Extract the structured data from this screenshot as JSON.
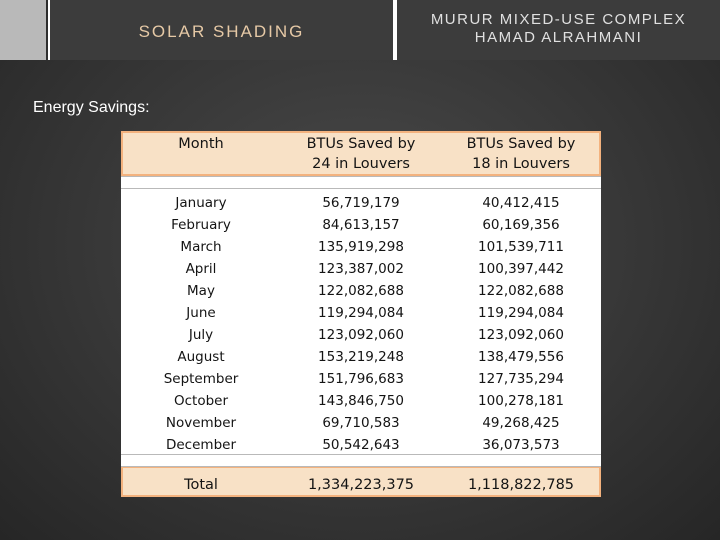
{
  "header": {
    "left_title": "SOLAR SHADING",
    "right_title_line1": "MURUR MIXED-USE COMPLEX",
    "right_title_line2": "HAMAD ALRAHMANI"
  },
  "subtitle": "Energy Savings:",
  "table": {
    "headers": {
      "month": "Month",
      "col24_line1": "BTUs Saved by",
      "col24_line2": "24 in Louvers",
      "col18_line1": "BTUs Saved by",
      "col18_line2": "18 in Louvers"
    },
    "rows": [
      {
        "month": "January",
        "louvers24": "56,719,179",
        "louvers18": "40,412,415"
      },
      {
        "month": "February",
        "louvers24": "84,613,157",
        "louvers18": "60,169,356"
      },
      {
        "month": "March",
        "louvers24": "135,919,298",
        "louvers18": "101,539,711"
      },
      {
        "month": "April",
        "louvers24": "123,387,002",
        "louvers18": "100,397,442"
      },
      {
        "month": "May",
        "louvers24": "122,082,688",
        "louvers18": "122,082,688"
      },
      {
        "month": "June",
        "louvers24": "119,294,084",
        "louvers18": "119,294,084"
      },
      {
        "month": "July",
        "louvers24": "123,092,060",
        "louvers18": "123,092,060"
      },
      {
        "month": "August",
        "louvers24": "153,219,248",
        "louvers18": "138,479,556"
      },
      {
        "month": "September",
        "louvers24": "151,796,683",
        "louvers18": "127,735,294"
      },
      {
        "month": "October",
        "louvers24": "143,846,750",
        "louvers18": "100,278,181"
      },
      {
        "month": "November",
        "louvers24": "69,710,583",
        "louvers18": "49,268,425"
      },
      {
        "month": "December",
        "louvers24": "50,542,643",
        "louvers18": "36,073,573"
      }
    ],
    "total": {
      "label": "Total",
      "louvers24": "1,334,223,375",
      "louvers18": "1,118,822,785"
    }
  },
  "colors": {
    "background": "#3a3a3a",
    "header_accent": "#e6c9a6",
    "table_band": "#f8e1c6",
    "table_border": "#f3b27e"
  }
}
